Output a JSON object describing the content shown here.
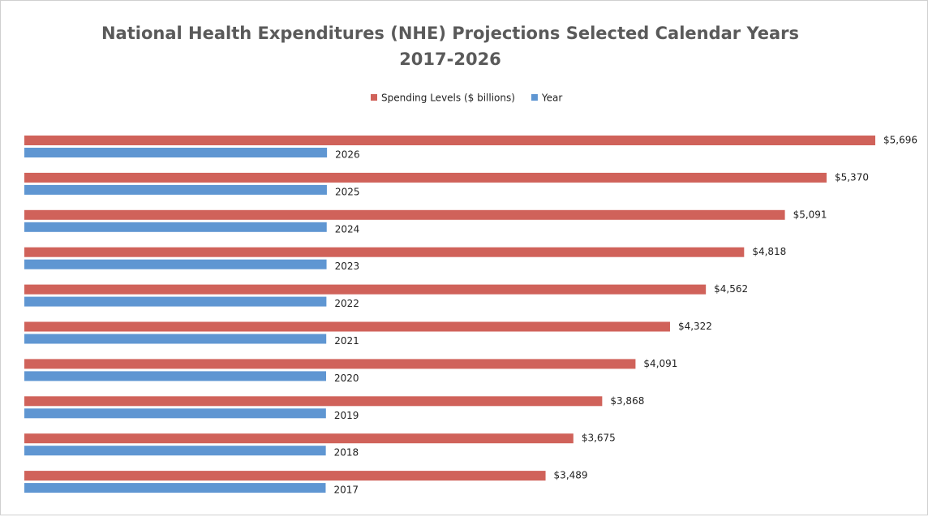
{
  "chart_data": {
    "type": "hbar",
    "title": [
      "National Health Expenditures (NHE) Projections Selected Calendar Years",
      "2017-2026"
    ],
    "legend": "top",
    "xlim": [
      0,
      6000
    ],
    "series": [
      {
        "name": "Spending Levels ($ billions)",
        "color": "#d0625a",
        "values": [
          3489,
          3675,
          3868,
          4091,
          4322,
          4562,
          4818,
          5091,
          5370,
          5696
        ],
        "value_labels": [
          "$3,489",
          "$3,675",
          "$3,868",
          "$4,091",
          "$4,322",
          "$4,562",
          "$4,818",
          "$5,091",
          "$5,370",
          "$5,696"
        ]
      },
      {
        "name": "Year",
        "color": "#5f96d2",
        "values": [
          2017,
          2018,
          2019,
          2020,
          2021,
          2022,
          2023,
          2024,
          2025,
          2026
        ]
      }
    ]
  }
}
